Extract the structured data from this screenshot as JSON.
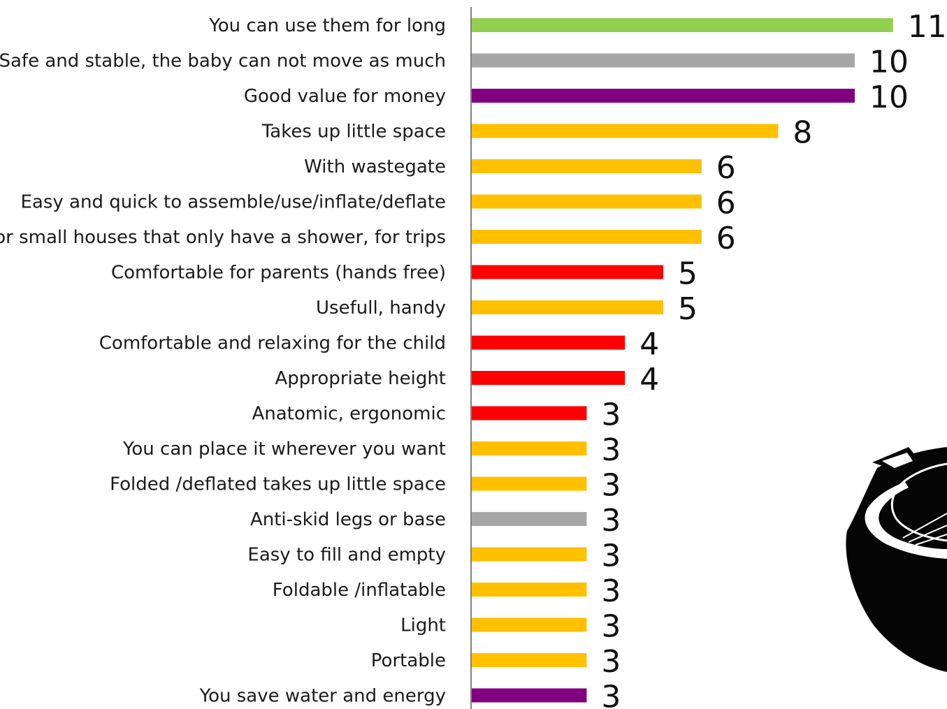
{
  "chart_data": {
    "type": "bar",
    "orientation": "horizontal",
    "title": "",
    "xlabel": "",
    "ylabel": "",
    "grid": false,
    "legend": "none",
    "xlim": [
      0,
      11
    ],
    "categories": [
      "You can use them for long",
      "Safe and stable, the baby can not move as much",
      "Good value for money",
      "Takes up little space",
      "With wastegate",
      "Easy and quick to assemble/use/inflate/deflate",
      "For small houses that only have a shower, for trips",
      "Comfortable for parents (hands free)",
      "Usefull, handy",
      "Comfortable and relaxing for the child",
      "Appropriate height",
      "Anatomic, ergonomic",
      "You can place it wherever you want",
      "Folded /deflated takes up little space",
      "Anti-skid legs or base",
      "Easy to fill and empty",
      "Foldable /inflatable",
      "Light",
      "Portable",
      "You save water and energy"
    ],
    "values": [
      11,
      10,
      10,
      8,
      6,
      6,
      6,
      5,
      5,
      4,
      4,
      3,
      3,
      3,
      3,
      3,
      3,
      3,
      3,
      3
    ],
    "value_labels": [
      "11",
      "10",
      "10",
      "8",
      "6",
      "6",
      "6",
      "5",
      "5",
      "4",
      "4",
      "3",
      "3",
      "3",
      "3",
      "3",
      "3",
      "3",
      "3",
      "3"
    ],
    "bar_colors": [
      "#92d050",
      "#a6a6a6",
      "#800080",
      "#ffc000",
      "#ffc000",
      "#ffc000",
      "#ffc000",
      "#ff0000",
      "#ffc000",
      "#ff0000",
      "#ff0000",
      "#ff0000",
      "#ffc000",
      "#ffc000",
      "#a6a6a6",
      "#ffc000",
      "#ffc000",
      "#ffc000",
      "#ffc000",
      "#800080"
    ],
    "axis_color": "#7f7f7f"
  },
  "decoration": {
    "icon": "baby-bathtub-icon"
  }
}
